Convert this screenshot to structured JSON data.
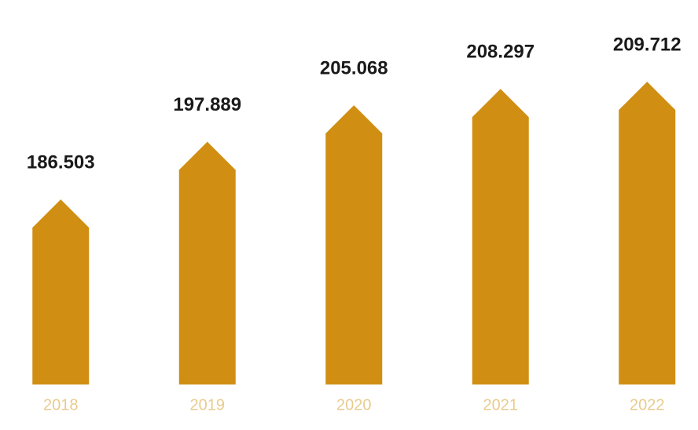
{
  "chart_data": {
    "type": "arrow-bar",
    "categories": [
      "2018",
      "2019",
      "2020",
      "2021",
      "2022"
    ],
    "values": [
      186.503,
      197.889,
      205.068,
      208.297,
      209.712
    ],
    "color": "#d08f12",
    "ylim": [
      150,
      215
    ]
  }
}
